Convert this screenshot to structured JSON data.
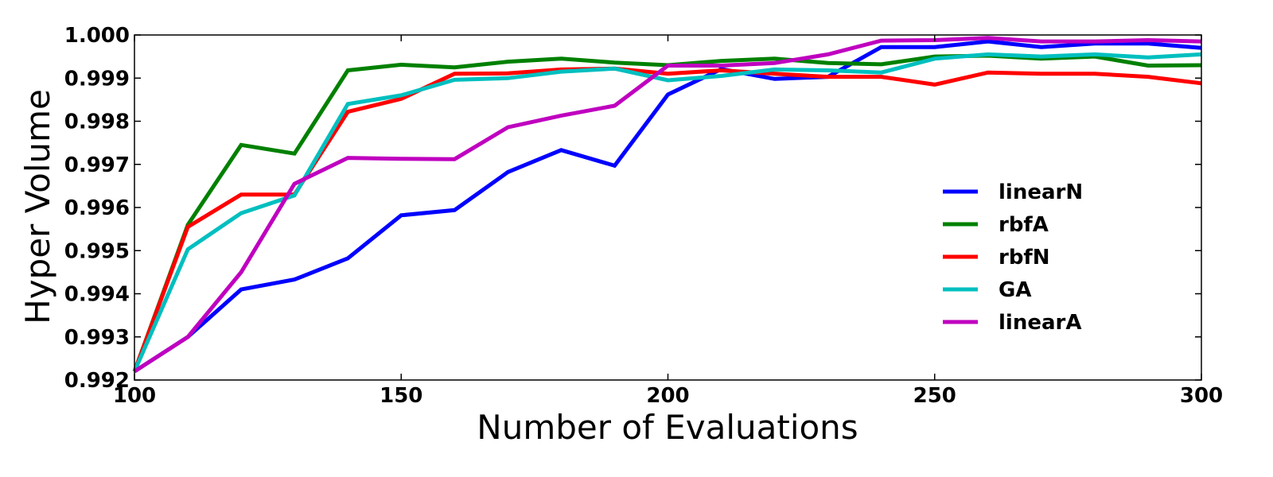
{
  "chart_data": {
    "type": "line",
    "title": "",
    "xlabel": "Number of Evaluations",
    "ylabel": "Hyper Volume",
    "xlim": [
      100,
      300
    ],
    "ylim": [
      0.992,
      1.0
    ],
    "x_ticks": [
      "100",
      "150",
      "200",
      "250",
      "300"
    ],
    "y_ticks": [
      "0.992",
      "0.993",
      "0.994",
      "0.995",
      "0.996",
      "0.997",
      "0.998",
      "0.999",
      "1.000"
    ],
    "grid": false,
    "legend_position": "center-right",
    "x": [
      100,
      110,
      120,
      130,
      140,
      150,
      160,
      170,
      180,
      190,
      200,
      210,
      220,
      230,
      240,
      250,
      260,
      270,
      280,
      290,
      300
    ],
    "series": [
      {
        "name": "linearN",
        "color": "#0000ff",
        "values": [
          0.9922,
          0.993,
          0.9941,
          0.99433,
          0.99482,
          0.99582,
          0.99594,
          0.99682,
          0.99733,
          0.99697,
          0.99862,
          0.99921,
          0.99898,
          0.99903,
          0.99972,
          0.99972,
          0.99985,
          0.99972,
          0.9998,
          0.9998,
          0.9997
        ]
      },
      {
        "name": "rbfA",
        "color": "#008000",
        "values": [
          0.9922,
          0.9956,
          0.99745,
          0.99725,
          0.99918,
          0.99931,
          0.99925,
          0.99938,
          0.99945,
          0.99936,
          0.9993,
          0.9994,
          0.99945,
          0.99935,
          0.99932,
          0.9995,
          0.99952,
          0.99945,
          0.9995,
          0.99929,
          0.9993
        ]
      },
      {
        "name": "rbfN",
        "color": "#ff0000",
        "values": [
          0.9922,
          0.99555,
          0.9963,
          0.9963,
          0.99822,
          0.99852,
          0.9991,
          0.99911,
          0.9992,
          0.99922,
          0.9991,
          0.99918,
          0.9991,
          0.99903,
          0.99903,
          0.99885,
          0.99913,
          0.9991,
          0.9991,
          0.99903,
          0.99888
        ]
      },
      {
        "name": "GA",
        "color": "#00bfbf",
        "values": [
          0.9922,
          0.99503,
          0.99587,
          0.99628,
          0.9984,
          0.9986,
          0.99896,
          0.999,
          0.99915,
          0.99922,
          0.99895,
          0.99905,
          0.9992,
          0.99918,
          0.99913,
          0.99945,
          0.99955,
          0.9995,
          0.99955,
          0.99948,
          0.99955
        ]
      },
      {
        "name": "linearA",
        "color": "#bf00bf",
        "values": [
          0.9922,
          0.993,
          0.9945,
          0.99655,
          0.99715,
          0.99713,
          0.99712,
          0.99786,
          0.99813,
          0.99836,
          0.99929,
          0.99929,
          0.99935,
          0.99955,
          0.99987,
          0.99988,
          0.99993,
          0.99985,
          0.99985,
          0.99988,
          0.99985
        ]
      }
    ]
  }
}
